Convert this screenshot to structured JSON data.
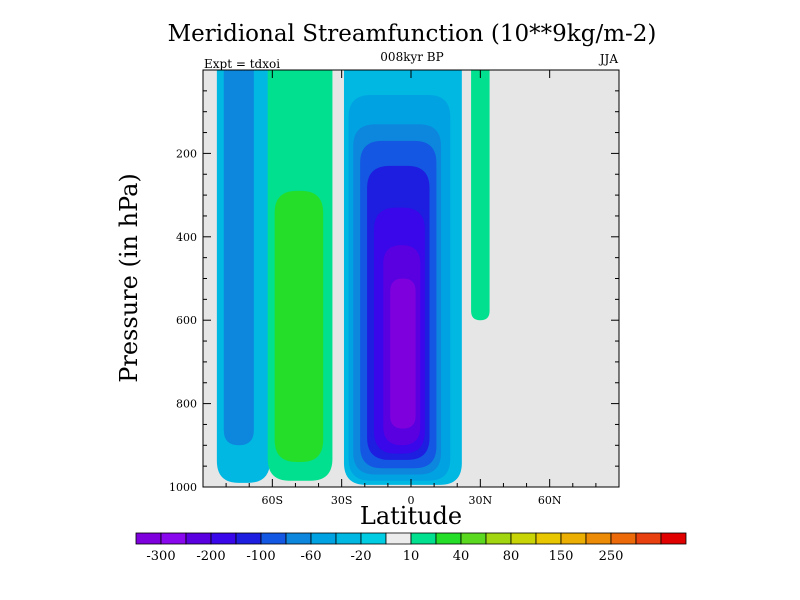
{
  "chart_data": {
    "type": "contour",
    "title": "Meridional Streamfunction (10**9kg/m-2)",
    "subtitle_center": "008kyr BP",
    "subtitle_left": "Expt = tdxoi",
    "subtitle_right": "JJA",
    "xlabel": "Latitude",
    "ylabel": "Pressure (in hPa)",
    "xlim": [
      -90,
      90
    ],
    "ylim": [
      0,
      1000
    ],
    "y_reversed": true,
    "x_ticks": [
      {
        "value": -60,
        "label": "60S"
      },
      {
        "value": -30,
        "label": "30S"
      },
      {
        "value": 0,
        "label": "0"
      },
      {
        "value": 30,
        "label": "30N"
      },
      {
        "value": 60,
        "label": "60N"
      }
    ],
    "y_ticks": [
      {
        "value": 200,
        "label": "200"
      },
      {
        "value": 400,
        "label": "400"
      },
      {
        "value": 600,
        "label": "600"
      },
      {
        "value": 800,
        "label": "800"
      },
      {
        "value": 1000,
        "label": "1000"
      }
    ],
    "background_color": "#e6e6e6",
    "colorbar": {
      "colors": [
        "#7d00dd",
        "#8a08ee",
        "#5a00e0",
        "#3a06ea",
        "#1d1ee0",
        "#1457e2",
        "#0d87dd",
        "#00a2e2",
        "#00b8e2",
        "#00cde2",
        "#ececec",
        "#00e08e",
        "#24de2a",
        "#5bd820",
        "#a1d610",
        "#c8d406",
        "#e8c600",
        "#ebae02",
        "#ec8c06",
        "#ec6a0a",
        "#e94010",
        "#e00000"
      ],
      "labels": [
        {
          "index": 1,
          "text": "-300"
        },
        {
          "index": 3,
          "text": "-200"
        },
        {
          "index": 5,
          "text": "-100"
        },
        {
          "index": 7,
          "text": "-60"
        },
        {
          "index": 9,
          "text": "-20"
        },
        {
          "index": 11,
          "text": "10"
        },
        {
          "index": 13,
          "text": "40"
        },
        {
          "index": 15,
          "text": "80"
        },
        {
          "index": 17,
          "text": "150"
        },
        {
          "index": 19,
          "text": "250"
        }
      ]
    },
    "cells": [
      {
        "name": "sh-polar-cell",
        "levels": [
          {
            "value": -20,
            "color": "#00b8e2",
            "lat": [
              -84,
              -61
            ],
            "p": [
              0,
              990
            ]
          },
          {
            "value": -40,
            "color": "#0d87dd",
            "lat": [
              -81,
              -68
            ],
            "p": [
              0,
              900
            ]
          }
        ]
      },
      {
        "name": "ferrel-cell",
        "levels": [
          {
            "value": 10,
            "color": "#00e08e",
            "lat": [
              -62,
              -34
            ],
            "p": [
              0,
              985
            ]
          },
          {
            "value": 40,
            "color": "#24de2a",
            "lat": [
              -59,
              -38
            ],
            "p": [
              290,
              940
            ]
          }
        ]
      },
      {
        "name": "hadley-cell",
        "levels": [
          {
            "value": -20,
            "color": "#00b8e2",
            "lat": [
              -29,
              22
            ],
            "p": [
              0,
              995
            ]
          },
          {
            "value": -40,
            "color": "#00a2e2",
            "lat": [
              -27,
              17
            ],
            "p": [
              60,
              985
            ]
          },
          {
            "value": -60,
            "color": "#0d87dd",
            "lat": [
              -25,
              13
            ],
            "p": [
              130,
              970
            ]
          },
          {
            "value": -80,
            "color": "#1457e2",
            "lat": [
              -22,
              11
            ],
            "p": [
              170,
              955
            ]
          },
          {
            "value": -100,
            "color": "#1d1ee0",
            "lat": [
              -19,
              8
            ],
            "p": [
              230,
              935
            ]
          },
          {
            "value": -150,
            "color": "#3a06ea",
            "lat": [
              -16,
              6
            ],
            "p": [
              330,
              920
            ]
          },
          {
            "value": -200,
            "color": "#5a00e0",
            "lat": [
              -12,
              4
            ],
            "p": [
              420,
              900
            ]
          },
          {
            "value": -250,
            "color": "#7d00dd",
            "lat": [
              -9,
              2
            ],
            "p": [
              500,
              860
            ]
          }
        ]
      },
      {
        "name": "nh-cell",
        "levels": [
          {
            "value": 10,
            "color": "#00e08e",
            "lat": [
              26,
              34
            ],
            "p": [
              0,
              600
            ]
          }
        ]
      }
    ]
  }
}
